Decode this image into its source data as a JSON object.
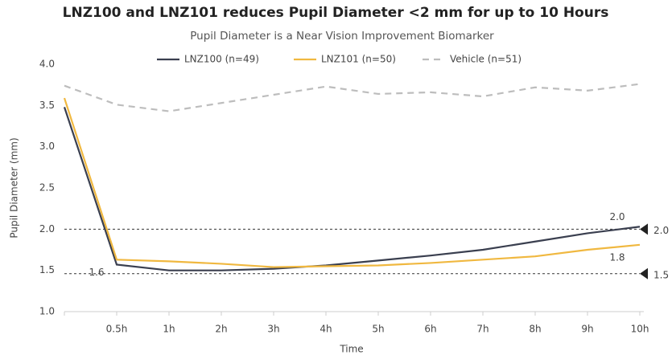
{
  "chart_data": {
    "type": "line",
    "title": "LNZ100 and LNZ101 reduces Pupil Diameter <2 mm for up to 10 Hours",
    "subtitle": "Pupil Diameter is a Near Vision Improvement Biomarker",
    "y_label": "Pupil Diameter (mm)",
    "x_label": "Time",
    "categories": [
      null,
      "0.5h",
      "1h",
      "2h",
      "3h",
      "4h",
      "5h",
      "6h",
      "7h",
      "8h",
      "9h",
      "10h"
    ],
    "series": [
      {
        "name": "LNZ100 (n=49)",
        "color": "#3a3f4f",
        "dashed": false,
        "values": [
          3.48,
          1.57,
          1.5,
          1.5,
          1.52,
          1.56,
          1.62,
          1.68,
          1.75,
          1.85,
          1.95,
          2.03
        ],
        "value_labels": [
          null,
          null,
          null,
          null,
          null,
          null,
          null,
          null,
          null,
          null,
          null,
          "2.0"
        ]
      },
      {
        "name": "LNZ101 (n=50)",
        "color": "#f0b840",
        "dashed": false,
        "values": [
          3.59,
          1.63,
          1.61,
          1.58,
          1.54,
          1.55,
          1.56,
          1.59,
          1.63,
          1.67,
          1.75,
          1.81
        ],
        "value_labels": [
          null,
          "1.6",
          null,
          null,
          null,
          null,
          null,
          null,
          null,
          null,
          null,
          "1.8"
        ]
      },
      {
        "name": "Vehicle (n=51)",
        "color": "#bdbdbd",
        "dashed": true,
        "values": [
          3.74,
          3.51,
          3.43,
          3.53,
          3.63,
          3.73,
          3.64,
          3.66,
          3.61,
          3.72,
          3.68,
          3.76
        ]
      }
    ],
    "reference_lines": [
      {
        "value": 2,
        "label": "2.0"
      },
      {
        "value": 1.46,
        "label": "1.5"
      }
    ],
    "ylim": [
      1,
      4
    ],
    "yticks": [
      {
        "value": 1,
        "label": "1.0"
      },
      1.5,
      {
        "value": 2,
        "label": "2.0"
      },
      2.5,
      {
        "value": 3,
        "label": "3.0"
      },
      3.5,
      {
        "value": 4,
        "label": "4.0"
      }
    ],
    "grid": false,
    "legend": "top"
  }
}
